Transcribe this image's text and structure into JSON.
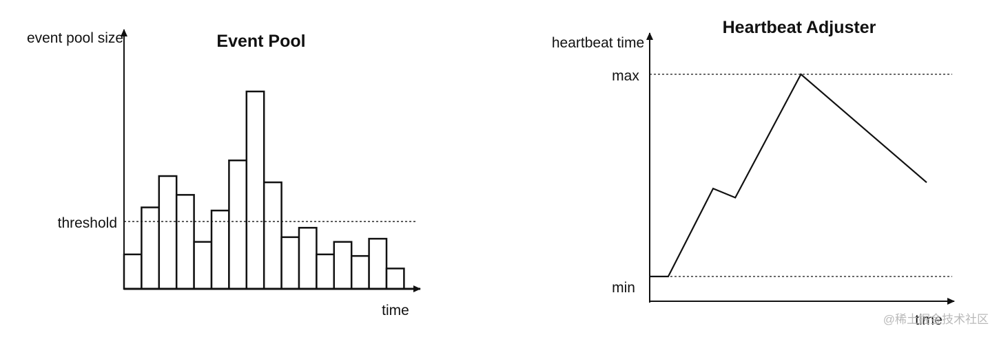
{
  "chart_data": [
    {
      "type": "bar",
      "title": "Event Pool",
      "xlabel": "time",
      "ylabel": "event pool size",
      "threshold_label": "threshold",
      "threshold": 4.3,
      "ylim": [
        0,
        12.8
      ],
      "values": [
        2.2,
        5.2,
        7.2,
        6.0,
        3.0,
        5.0,
        8.2,
        12.6,
        6.8,
        3.3,
        3.9,
        2.2,
        3.0,
        2.1,
        3.2,
        1.3
      ],
      "grid": false
    },
    {
      "type": "line",
      "title": "Heartbeat Adjuster",
      "xlabel": "time",
      "ylabel": "heartbeat time",
      "y_reference_labels": {
        "max": "max",
        "min": "min"
      },
      "ylim": [
        0,
        1
      ],
      "x": [
        0,
        0.067,
        0.229,
        0.309,
        0.546,
        1.0
      ],
      "y": [
        0,
        0,
        0.435,
        0.39,
        1.0,
        0.465
      ],
      "grid": false
    }
  ],
  "watermark": "@稀土掘金技术社区"
}
